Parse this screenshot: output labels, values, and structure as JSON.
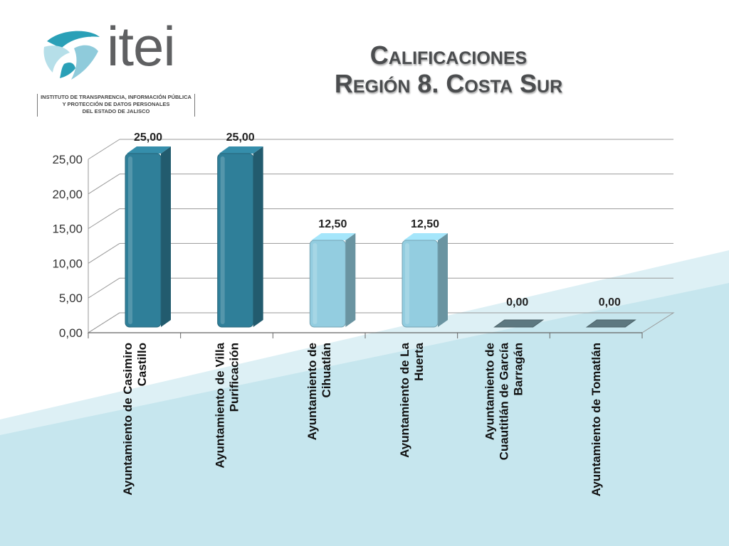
{
  "header": {
    "logo_word": "itei",
    "logo_caption": [
      "INSTITUTO DE TRANSPARENCIA, INFORMACIÓN PÚBLICA",
      "Y PROTECCIÓN DE DATOS PERSONALES",
      "DEL ESTADO DE JALISCO"
    ],
    "title_line1": "Calificaciones",
    "title_line2": "Región 8. Costa Sur"
  },
  "colors": {
    "dark_bar": "#2f7f99",
    "light_bar": "#93cde0",
    "zero_bar": "#5d7880",
    "background_band": "#c6e6ee"
  },
  "chart_data": {
    "type": "bar",
    "categories": [
      "Ayuntamiento de Casimiro Castillo",
      "Ayuntamiento de Villa Purificación",
      "Ayuntamiento de Cihuatlán",
      "Ayuntamiento de La Huerta",
      "Ayuntamiento de Cuautitlán de García Barragán",
      "Ayuntamiento de Tomatlán"
    ],
    "values": [
      25,
      25,
      12.5,
      12.5,
      0,
      0
    ],
    "data_labels": [
      "25,00",
      "25,00",
      "12,50",
      "12,50",
      "0,00",
      "0,00"
    ],
    "bar_colors": [
      "#2f7f99",
      "#2f7f99",
      "#93cde0",
      "#93cde0",
      "#5d7880",
      "#5d7880"
    ],
    "y_ticks": [
      "0,00",
      "5,00",
      "10,00",
      "15,00",
      "20,00",
      "25,00"
    ],
    "ylim": [
      0,
      25
    ],
    "grid": true,
    "legend": "none",
    "style": "3d"
  }
}
